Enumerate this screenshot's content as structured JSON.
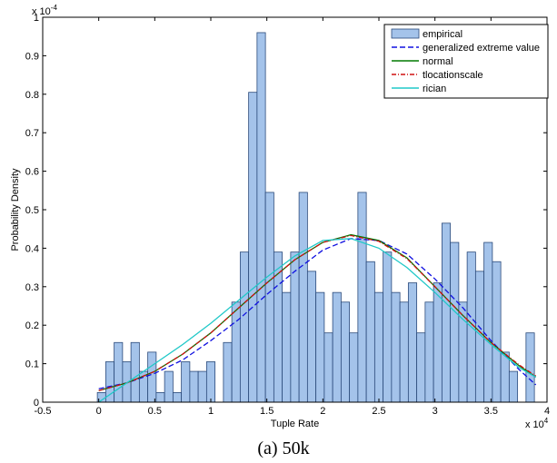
{
  "chart_data": {
    "type": "bar",
    "caption": "(a) 50k",
    "xlabel": "Tuple Rate",
    "ylabel": "Probability Density",
    "x_multiplier": "x 10",
    "x_multiplier_exp": "4",
    "y_multiplier": "x 10",
    "y_multiplier_exp": "-4",
    "xlim": [
      -0.5,
      4
    ],
    "ylim": [
      0,
      1
    ],
    "x_ticks": [
      "-0.5",
      "0",
      "0.5",
      "1",
      "1.5",
      "2",
      "2.5",
      "3",
      "3.5",
      "4"
    ],
    "y_ticks": [
      "0",
      "0.1",
      "0.2",
      "0.3",
      "0.4",
      "0.5",
      "0.6",
      "0.7",
      "0.8",
      "0.9",
      "1"
    ],
    "grid": false,
    "legend_position": "top-right",
    "bin_width": 0.075,
    "bar_color": "#a4c3ea",
    "bar_edge": "#2a4a7a",
    "bar_name": "empirical",
    "bars": [
      {
        "x": 0.025,
        "y": 0.025
      },
      {
        "x": 0.1,
        "y": 0.105
      },
      {
        "x": 0.175,
        "y": 0.155
      },
      {
        "x": 0.25,
        "y": 0.105
      },
      {
        "x": 0.325,
        "y": 0.155
      },
      {
        "x": 0.4,
        "y": 0.08
      },
      {
        "x": 0.475,
        "y": 0.13
      },
      {
        "x": 0.55,
        "y": 0.025
      },
      {
        "x": 0.625,
        "y": 0.08
      },
      {
        "x": 0.7,
        "y": 0.025
      },
      {
        "x": 0.775,
        "y": 0.105
      },
      {
        "x": 0.85,
        "y": 0.08
      },
      {
        "x": 0.925,
        "y": 0.08
      },
      {
        "x": 1.0,
        "y": 0.105
      },
      {
        "x": 1.075,
        "y": 0.0
      },
      {
        "x": 1.15,
        "y": 0.155
      },
      {
        "x": 1.225,
        "y": 0.26
      },
      {
        "x": 1.3,
        "y": 0.39
      },
      {
        "x": 1.375,
        "y": 0.805
      },
      {
        "x": 1.45,
        "y": 0.96
      },
      {
        "x": 1.525,
        "y": 0.545
      },
      {
        "x": 1.6,
        "y": 0.39
      },
      {
        "x": 1.675,
        "y": 0.285
      },
      {
        "x": 1.75,
        "y": 0.39
      },
      {
        "x": 1.825,
        "y": 0.545
      },
      {
        "x": 1.9,
        "y": 0.34
      },
      {
        "x": 1.975,
        "y": 0.285
      },
      {
        "x": 2.05,
        "y": 0.18
      },
      {
        "x": 2.125,
        "y": 0.285
      },
      {
        "x": 2.2,
        "y": 0.26
      },
      {
        "x": 2.275,
        "y": 0.18
      },
      {
        "x": 2.35,
        "y": 0.545
      },
      {
        "x": 2.425,
        "y": 0.365
      },
      {
        "x": 2.5,
        "y": 0.285
      },
      {
        "x": 2.575,
        "y": 0.39
      },
      {
        "x": 2.65,
        "y": 0.285
      },
      {
        "x": 2.725,
        "y": 0.26
      },
      {
        "x": 2.8,
        "y": 0.31
      },
      {
        "x": 2.875,
        "y": 0.18
      },
      {
        "x": 2.95,
        "y": 0.26
      },
      {
        "x": 3.025,
        "y": 0.31
      },
      {
        "x": 3.1,
        "y": 0.465
      },
      {
        "x": 3.175,
        "y": 0.415
      },
      {
        "x": 3.25,
        "y": 0.26
      },
      {
        "x": 3.325,
        "y": 0.39
      },
      {
        "x": 3.4,
        "y": 0.34
      },
      {
        "x": 3.475,
        "y": 0.415
      },
      {
        "x": 3.55,
        "y": 0.365
      },
      {
        "x": 3.625,
        "y": 0.13
      },
      {
        "x": 3.7,
        "y": 0.08
      },
      {
        "x": 3.775,
        "y": 0.0
      },
      {
        "x": 3.85,
        "y": 0.18
      }
    ],
    "series": [
      {
        "name": "generalized extreme value",
        "color": "#1010e0",
        "dash": "6,3",
        "x": [
          0.0,
          0.25,
          0.5,
          0.75,
          1.0,
          1.25,
          1.5,
          1.75,
          2.0,
          2.25,
          2.5,
          2.75,
          3.0,
          3.25,
          3.5,
          3.75,
          3.9
        ],
        "y": [
          0.035,
          0.05,
          0.075,
          0.11,
          0.16,
          0.215,
          0.28,
          0.34,
          0.395,
          0.425,
          0.42,
          0.385,
          0.32,
          0.245,
          0.16,
          0.085,
          0.045
        ]
      },
      {
        "name": "normal",
        "color": "#007a00",
        "dash": "",
        "x": [
          0.0,
          0.25,
          0.5,
          0.75,
          1.0,
          1.25,
          1.5,
          1.75,
          2.0,
          2.25,
          2.5,
          2.75,
          3.0,
          3.25,
          3.5,
          3.75,
          3.9
        ],
        "y": [
          0.03,
          0.05,
          0.08,
          0.125,
          0.18,
          0.245,
          0.31,
          0.37,
          0.415,
          0.435,
          0.42,
          0.375,
          0.3,
          0.225,
          0.155,
          0.095,
          0.065
        ]
      },
      {
        "name": "tlocationscale",
        "color": "#d01010",
        "dash": "5,2,1,2",
        "x": [
          0.0,
          0.25,
          0.5,
          0.75,
          1.0,
          1.25,
          1.5,
          1.75,
          2.0,
          2.25,
          2.5,
          2.75,
          3.0,
          3.25,
          3.5,
          3.75,
          3.9
        ],
        "y": [
          0.03,
          0.05,
          0.08,
          0.125,
          0.18,
          0.245,
          0.31,
          0.37,
          0.415,
          0.433,
          0.418,
          0.373,
          0.3,
          0.225,
          0.155,
          0.097,
          0.068
        ]
      },
      {
        "name": "rician",
        "color": "#20c8c8",
        "dash": "",
        "x": [
          0.0,
          0.25,
          0.5,
          0.75,
          1.0,
          1.25,
          1.5,
          1.75,
          2.0,
          2.25,
          2.5,
          2.75,
          3.0,
          3.25,
          3.5,
          3.75,
          3.9
        ],
        "y": [
          0.0,
          0.05,
          0.1,
          0.15,
          0.205,
          0.265,
          0.325,
          0.38,
          0.42,
          0.425,
          0.4,
          0.35,
          0.285,
          0.215,
          0.15,
          0.09,
          0.065
        ]
      }
    ]
  }
}
